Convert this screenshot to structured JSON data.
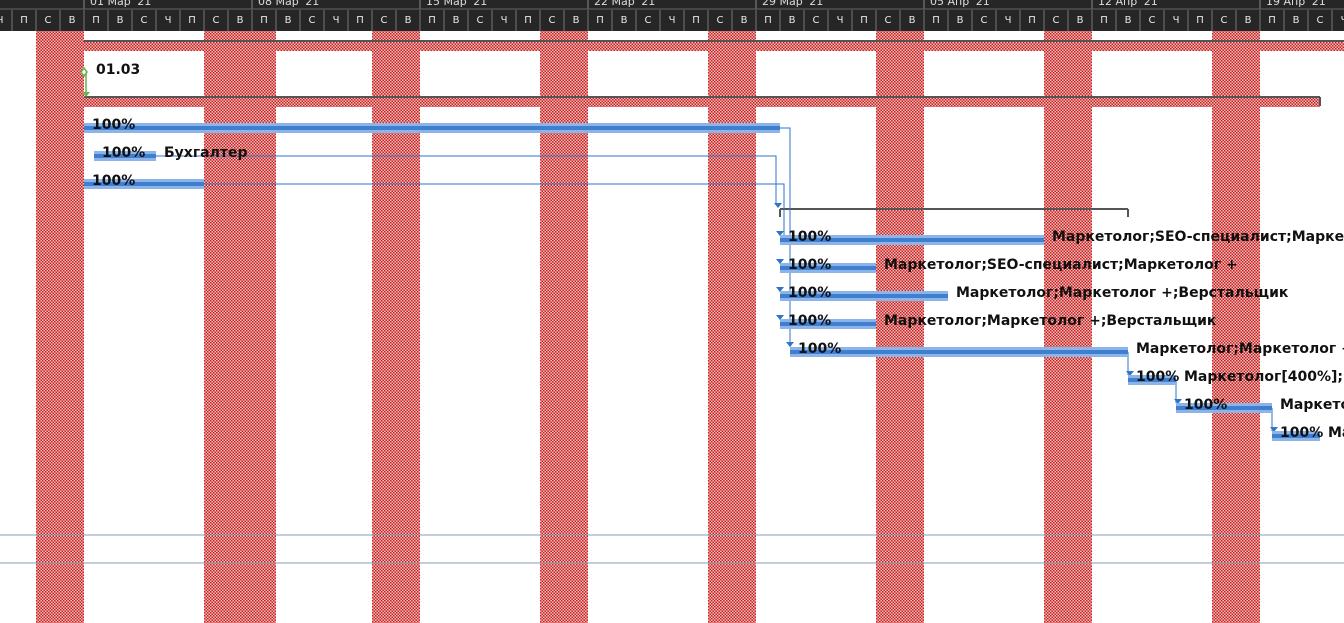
{
  "timescale": {
    "weeks": [
      "01 Мар '21",
      "08 Мар '21",
      "15 Мар '21",
      "22 Мар '21",
      "29 Мар '21",
      "05 Апр '21",
      "12 Апр '21",
      "19 Апр '21"
    ],
    "days": [
      "П",
      "В",
      "С",
      "Ч",
      "П",
      "С",
      "В"
    ]
  },
  "milestone": {
    "label": "01.03"
  },
  "tasks": [
    {
      "percent": "100%"
    },
    {
      "percent": "100%",
      "resources": "Бухгалтер"
    },
    {
      "percent": "100%"
    },
    {
      "percent": "100%",
      "resources": "Маркетолог;SEO-специалист;Маркетолог +"
    },
    {
      "percent": "100%",
      "resources": "Маркетолог;SEO-специалист;Маркетолог +"
    },
    {
      "percent": "100%",
      "resources": "Маркетолог;Маркетолог +;Верстальщик"
    },
    {
      "percent": "100%",
      "resources": "Маркетолог;Маркетолог +;Верстальщик"
    },
    {
      "percent": "100%",
      "resources": "Маркетолог;Маркетолог +"
    },
    {
      "percent": "100%",
      "resources": "Маркетолог[400%];"
    },
    {
      "percent": "100%",
      "resources": "Маркетолог"
    },
    {
      "percent": "100%",
      "resources": "Маркетолог"
    }
  ]
}
